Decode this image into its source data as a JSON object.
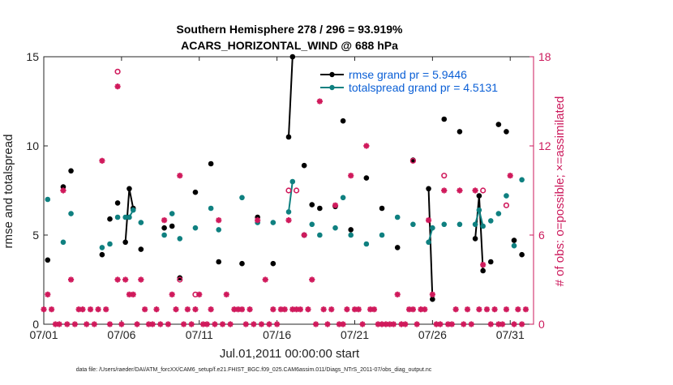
{
  "chart_data": {
    "type": "line",
    "title_line1": "Southern Hemisphere 278 / 296 = 93.919%",
    "title_line2": "ACARS_HORIZONTAL_WIND @ 688 hPa",
    "xlabel": "Jul.01,2011 00:00:00 start",
    "ylabel_left": "rmse and totalspread",
    "ylabel_right": "# of obs: o=possible; ×=assimilated",
    "footer": "data file: /Users/raeder/DAI/ATM_forcXX/CAM6_setup/f.e21.FHIST_BGC.f09_025.CAM6assim.011/Diags_NTrS_2011-07/obs_diag_output.nc",
    "xlim": [
      0,
      31.5
    ],
    "ylim_left": [
      0,
      15
    ],
    "ylim_right": [
      0,
      18
    ],
    "x_ticks": [
      {
        "v": 0,
        "label": "07/01"
      },
      {
        "v": 5,
        "label": "07/06"
      },
      {
        "v": 10,
        "label": "07/11"
      },
      {
        "v": 15,
        "label": "07/16"
      },
      {
        "v": 20,
        "label": "07/21"
      },
      {
        "v": 25,
        "label": "07/26"
      },
      {
        "v": 30,
        "label": "07/31"
      }
    ],
    "y_ticks_left": [
      {
        "v": 0,
        "label": "0"
      },
      {
        "v": 5,
        "label": "5"
      },
      {
        "v": 10,
        "label": "10"
      },
      {
        "v": 15,
        "label": "15"
      }
    ],
    "y_ticks_right": [
      {
        "v": 0,
        "label": "0"
      },
      {
        "v": 6,
        "label": "6"
      },
      {
        "v": 12,
        "label": "12"
      },
      {
        "v": 18,
        "label": "18"
      }
    ],
    "colors": {
      "rmse": "#000000",
      "spread": "#0f8080",
      "obs": "#d01a5c",
      "legend_text": "#0a5fd6"
    },
    "series": [
      {
        "name": "rmse grand pr = 5.9446",
        "values": [
          [
            0.25,
            3.6
          ],
          [
            1.25,
            7.7
          ],
          [
            1.75,
            8.6
          ],
          [
            3.75,
            3.9
          ],
          [
            4.25,
            5.9
          ],
          [
            4.75,
            6.8
          ],
          [
            5.25,
            4.6
          ],
          [
            5.5,
            7.6
          ],
          [
            5.75,
            6.5
          ],
          [
            6.25,
            4.2
          ],
          [
            7.75,
            5.4
          ],
          [
            8.25,
            5.5
          ],
          [
            8.75,
            2.6
          ],
          [
            9.75,
            7.4
          ],
          [
            10.75,
            9.0
          ],
          [
            11.25,
            3.5
          ],
          [
            12.75,
            3.4
          ],
          [
            13.75,
            6.0
          ],
          [
            14.75,
            3.4
          ],
          [
            15.75,
            10.5
          ],
          [
            16.0,
            15.0
          ],
          [
            16.75,
            8.9
          ],
          [
            17.25,
            6.7
          ],
          [
            17.75,
            6.5
          ],
          [
            18.75,
            6.6
          ],
          [
            19.25,
            11.4
          ],
          [
            19.75,
            5.3
          ],
          [
            20.75,
            8.2
          ],
          [
            21.75,
            6.5
          ],
          [
            22.75,
            4.3
          ],
          [
            23.75,
            9.2
          ],
          [
            24.75,
            7.6
          ],
          [
            25.0,
            1.4
          ],
          [
            25.75,
            11.5
          ],
          [
            26.75,
            10.8
          ],
          [
            27.75,
            4.8
          ],
          [
            28.0,
            7.2
          ],
          [
            28.25,
            3.0
          ],
          [
            28.75,
            3.5
          ],
          [
            29.25,
            11.2
          ],
          [
            29.75,
            10.8
          ],
          [
            30.25,
            4.7
          ],
          [
            30.75,
            3.9
          ]
        ],
        "connected": [
          [
            5.25,
            5.5,
            5.75
          ],
          [
            15.75,
            16.0
          ],
          [
            24.75,
            25.0
          ],
          [
            27.75,
            28.0,
            28.25
          ]
        ]
      },
      {
        "name": "totalspread grand pr = 4.5131",
        "values": [
          [
            0.25,
            7.0
          ],
          [
            1.25,
            4.6
          ],
          [
            1.75,
            6.2
          ],
          [
            3.75,
            4.3
          ],
          [
            4.25,
            4.5
          ],
          [
            4.75,
            6.0
          ],
          [
            5.25,
            6.0
          ],
          [
            5.5,
            6.0
          ],
          [
            5.75,
            6.4
          ],
          [
            6.25,
            5.7
          ],
          [
            7.75,
            5.0
          ],
          [
            8.25,
            6.2
          ],
          [
            8.75,
            4.8
          ],
          [
            9.75,
            5.4
          ],
          [
            10.75,
            6.5
          ],
          [
            11.25,
            5.3
          ],
          [
            12.75,
            7.1
          ],
          [
            13.75,
            5.7
          ],
          [
            14.75,
            5.7
          ],
          [
            15.75,
            6.3
          ],
          [
            16.0,
            8.0
          ],
          [
            16.75,
            5.0
          ],
          [
            17.25,
            5.6
          ],
          [
            17.75,
            5.0
          ],
          [
            18.75,
            5.4
          ],
          [
            19.25,
            7.1
          ],
          [
            19.75,
            5.0
          ],
          [
            20.75,
            4.5
          ],
          [
            21.75,
            5.0
          ],
          [
            22.75,
            6.0
          ],
          [
            23.75,
            5.6
          ],
          [
            24.75,
            4.6
          ],
          [
            25.0,
            5.4
          ],
          [
            25.75,
            5.6
          ],
          [
            26.75,
            5.6
          ],
          [
            27.75,
            5.6
          ],
          [
            28.0,
            6.4
          ],
          [
            28.25,
            5.5
          ],
          [
            28.75,
            5.8
          ],
          [
            29.25,
            6.2
          ],
          [
            29.75,
            7.2
          ],
          [
            30.25,
            4.4
          ],
          [
            30.75,
            8.1
          ]
        ],
        "connected": [
          [
            5.25,
            5.5,
            5.75
          ],
          [
            15.75,
            16.0
          ],
          [
            24.75,
            25.0
          ],
          [
            27.75,
            28.0,
            28.25
          ]
        ]
      }
    ],
    "obs_possible": [
      [
        4.75,
        17.0
      ],
      [
        8.75,
        3.0
      ],
      [
        9.75,
        2.0
      ],
      [
        15.75,
        9.0
      ],
      [
        16.25,
        9.0
      ],
      [
        23.75,
        11.0
      ],
      [
        25.75,
        10.0
      ],
      [
        28.25,
        9.0
      ],
      [
        29.75,
        8.0
      ]
    ],
    "obs_assimilated": [
      [
        0.0,
        1.0
      ],
      [
        0.25,
        2.0
      ],
      [
        0.5,
        1.0
      ],
      [
        0.75,
        0.0
      ],
      [
        1.0,
        0.0
      ],
      [
        1.25,
        9.0
      ],
      [
        1.5,
        0.0
      ],
      [
        1.75,
        3.0
      ],
      [
        2.0,
        0.0
      ],
      [
        2.25,
        1.0
      ],
      [
        2.5,
        1.0
      ],
      [
        2.75,
        0.0
      ],
      [
        3.0,
        1.0
      ],
      [
        3.25,
        0.0
      ],
      [
        3.5,
        1.0
      ],
      [
        3.75,
        11.0
      ],
      [
        4.0,
        1.0
      ],
      [
        4.25,
        0.0
      ],
      [
        4.75,
        16.0
      ],
      [
        4.75,
        3.0
      ],
      [
        5.0,
        0.0
      ],
      [
        5.25,
        3.0
      ],
      [
        5.5,
        2.0
      ],
      [
        5.75,
        2.0
      ],
      [
        6.0,
        0.0
      ],
      [
        6.25,
        3.0
      ],
      [
        6.5,
        1.0
      ],
      [
        6.75,
        0.0
      ],
      [
        7.0,
        0.0
      ],
      [
        7.25,
        1.0
      ],
      [
        7.5,
        0.0
      ],
      [
        7.75,
        7.0
      ],
      [
        8.0,
        0.0
      ],
      [
        8.25,
        2.0
      ],
      [
        8.5,
        1.0
      ],
      [
        8.75,
        10.0
      ],
      [
        9.0,
        0.0
      ],
      [
        9.25,
        1.0
      ],
      [
        9.5,
        0.0
      ],
      [
        9.75,
        1.0
      ],
      [
        10.0,
        2.0
      ],
      [
        10.25,
        0.0
      ],
      [
        10.5,
        0.0
      ],
      [
        10.75,
        1.0
      ],
      [
        11.0,
        0.0
      ],
      [
        11.25,
        7.0
      ],
      [
        11.5,
        0.0
      ],
      [
        11.75,
        2.0
      ],
      [
        12.0,
        0.0
      ],
      [
        12.25,
        1.0
      ],
      [
        12.5,
        1.0
      ],
      [
        12.75,
        1.0
      ],
      [
        13.0,
        0.0
      ],
      [
        13.25,
        1.0
      ],
      [
        13.5,
        0.0
      ],
      [
        13.75,
        7.0
      ],
      [
        14.0,
        0.0
      ],
      [
        14.25,
        3.0
      ],
      [
        14.5,
        0.0
      ],
      [
        14.75,
        1.0
      ],
      [
        15.0,
        0.0
      ],
      [
        15.25,
        1.0
      ],
      [
        15.5,
        1.0
      ],
      [
        15.75,
        7.0
      ],
      [
        16.0,
        1.0
      ],
      [
        16.25,
        1.0
      ],
      [
        16.5,
        1.0
      ],
      [
        16.75,
        6.0
      ],
      [
        17.0,
        1.0
      ],
      [
        17.25,
        3.0
      ],
      [
        17.5,
        0.0
      ],
      [
        17.75,
        15.0
      ],
      [
        18.0,
        1.0
      ],
      [
        18.25,
        0.0
      ],
      [
        18.5,
        1.0
      ],
      [
        18.75,
        8.0
      ],
      [
        19.0,
        0.0
      ],
      [
        19.25,
        0.0
      ],
      [
        19.5,
        1.0
      ],
      [
        19.75,
        10.0
      ],
      [
        20.0,
        1.0
      ],
      [
        20.25,
        1.0
      ],
      [
        20.5,
        0.0
      ],
      [
        20.75,
        12.0
      ],
      [
        21.0,
        1.0
      ],
      [
        21.25,
        1.0
      ],
      [
        21.5,
        0.0
      ],
      [
        21.75,
        0.0
      ],
      [
        22.0,
        0.0
      ],
      [
        22.25,
        0.0
      ],
      [
        22.5,
        0.0
      ],
      [
        22.75,
        2.0
      ],
      [
        23.0,
        0.0
      ],
      [
        23.25,
        0.0
      ],
      [
        23.5,
        1.0
      ],
      [
        23.75,
        1.0
      ],
      [
        24.0,
        0.0
      ],
      [
        24.25,
        1.0
      ],
      [
        24.5,
        1.0
      ],
      [
        24.75,
        7.0
      ],
      [
        25.0,
        2.0
      ],
      [
        25.25,
        0.0
      ],
      [
        25.5,
        0.0
      ],
      [
        25.75,
        9.0
      ],
      [
        26.0,
        0.0
      ],
      [
        26.25,
        0.0
      ],
      [
        26.5,
        1.0
      ],
      [
        26.75,
        9.0
      ],
      [
        27.0,
        0.0
      ],
      [
        27.25,
        1.0
      ],
      [
        27.5,
        0.0
      ],
      [
        27.75,
        9.0
      ],
      [
        28.0,
        1.0
      ],
      [
        28.25,
        4.0
      ],
      [
        28.5,
        1.0
      ],
      [
        28.75,
        0.0
      ],
      [
        29.0,
        1.0
      ],
      [
        29.25,
        0.0
      ],
      [
        29.5,
        0.0
      ],
      [
        29.75,
        1.0
      ],
      [
        30.0,
        10.0
      ],
      [
        30.25,
        0.0
      ],
      [
        30.5,
        1.0
      ],
      [
        30.75,
        0.0
      ],
      [
        31.0,
        1.0
      ]
    ]
  }
}
